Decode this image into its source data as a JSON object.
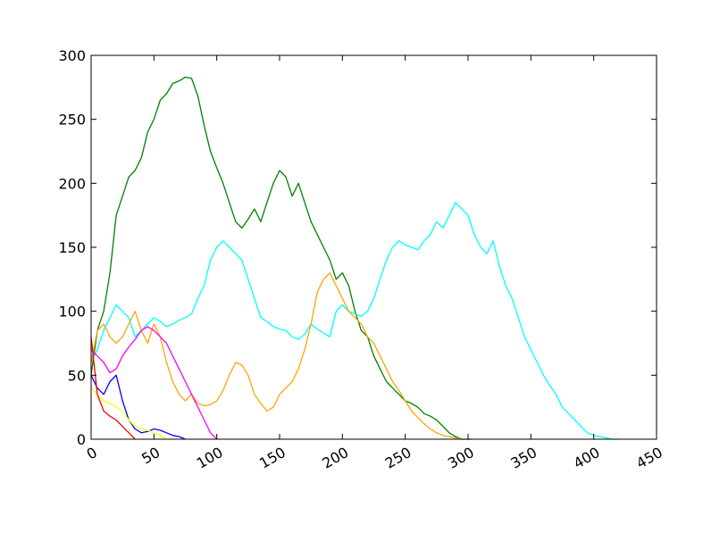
{
  "chart_data": {
    "type": "line",
    "title": "",
    "xlabel": "",
    "ylabel": "",
    "xlim": [
      0,
      450
    ],
    "ylim": [
      0,
      300
    ],
    "x_ticks": [
      0,
      50,
      100,
      150,
      200,
      250,
      300,
      350,
      400,
      450
    ],
    "y_ticks": [
      0,
      50,
      100,
      150,
      200,
      250,
      300
    ],
    "grid": false,
    "legend": "none",
    "series": [
      {
        "color": "#008000",
        "x": [
          0,
          5,
          10,
          15,
          20,
          25,
          30,
          35,
          40,
          45,
          50,
          55,
          60,
          65,
          70,
          75,
          80,
          85,
          90,
          95,
          100,
          105,
          110,
          115,
          120,
          125,
          130,
          135,
          140,
          145,
          150,
          155,
          160,
          165,
          170,
          175,
          180,
          185,
          190,
          195,
          200,
          205,
          210,
          215,
          220,
          225,
          230,
          235,
          240,
          245,
          250,
          255,
          260,
          265,
          270,
          275,
          280,
          285,
          290,
          295,
          300,
          303
        ],
        "y": [
          50,
          85,
          100,
          130,
          175,
          190,
          205,
          210,
          220,
          240,
          250,
          265,
          270,
          278,
          280,
          283,
          282,
          268,
          245,
          225,
          212,
          200,
          185,
          170,
          165,
          172,
          180,
          170,
          185,
          200,
          210,
          205,
          190,
          200,
          185,
          170,
          160,
          150,
          140,
          125,
          130,
          120,
          100,
          85,
          80,
          65,
          55,
          45,
          40,
          35,
          30,
          28,
          25,
          20,
          18,
          15,
          10,
          5,
          2,
          0,
          0,
          0
        ]
      },
      {
        "color": "#00ffff",
        "x": [
          0,
          5,
          10,
          15,
          20,
          25,
          30,
          35,
          40,
          45,
          50,
          55,
          60,
          65,
          70,
          75,
          80,
          85,
          90,
          95,
          100,
          105,
          110,
          115,
          120,
          125,
          130,
          135,
          140,
          145,
          150,
          155,
          160,
          165,
          170,
          175,
          180,
          185,
          190,
          195,
          200,
          205,
          210,
          215,
          220,
          225,
          230,
          235,
          240,
          245,
          250,
          255,
          260,
          265,
          270,
          275,
          280,
          285,
          290,
          295,
          300,
          305,
          310,
          315,
          320,
          325,
          330,
          335,
          340,
          345,
          350,
          355,
          360,
          365,
          370,
          375,
          380,
          385,
          390,
          395,
          400,
          405,
          410,
          415,
          420
        ],
        "y": [
          60,
          70,
          85,
          95,
          105,
          100,
          95,
          80,
          85,
          90,
          95,
          92,
          88,
          90,
          93,
          95,
          98,
          110,
          120,
          140,
          150,
          155,
          150,
          145,
          140,
          125,
          110,
          95,
          92,
          88,
          86,
          85,
          80,
          78,
          82,
          90,
          86,
          83,
          80,
          100,
          105,
          100,
          98,
          96,
          100,
          110,
          125,
          140,
          150,
          155,
          152,
          150,
          148,
          155,
          160,
          170,
          165,
          175,
          185,
          180,
          175,
          160,
          150,
          145,
          155,
          135,
          120,
          110,
          95,
          80,
          70,
          60,
          50,
          42,
          35,
          25,
          20,
          15,
          10,
          5,
          3,
          2,
          1,
          0,
          0
        ]
      },
      {
        "color": "#ffa500",
        "x": [
          0,
          5,
          10,
          15,
          20,
          25,
          30,
          35,
          40,
          45,
          50,
          55,
          60,
          65,
          70,
          75,
          80,
          85,
          90,
          95,
          100,
          105,
          110,
          115,
          120,
          125,
          130,
          135,
          140,
          145,
          150,
          155,
          160,
          165,
          170,
          175,
          180,
          185,
          190,
          195,
          200,
          205,
          210,
          215,
          220,
          225,
          230,
          235,
          240,
          245,
          250,
          255,
          260,
          265,
          270,
          275,
          280,
          285,
          290,
          295
        ],
        "y": [
          60,
          85,
          90,
          80,
          75,
          80,
          90,
          100,
          85,
          75,
          90,
          80,
          60,
          45,
          35,
          30,
          35,
          28,
          26,
          27,
          30,
          38,
          50,
          60,
          58,
          50,
          35,
          28,
          22,
          25,
          35,
          40,
          45,
          55,
          70,
          90,
          115,
          125,
          130,
          120,
          110,
          100,
          95,
          90,
          80,
          75,
          65,
          55,
          45,
          38,
          30,
          22,
          17,
          12,
          8,
          5,
          3,
          2,
          1,
          0
        ]
      },
      {
        "color": "#ff00ff",
        "x": [
          0,
          5,
          10,
          15,
          20,
          25,
          30,
          35,
          40,
          45,
          50,
          55,
          60,
          65,
          70,
          75,
          80,
          85,
          90,
          95,
          100
        ],
        "y": [
          70,
          65,
          60,
          52,
          55,
          65,
          72,
          78,
          85,
          88,
          85,
          80,
          75,
          65,
          55,
          45,
          35,
          25,
          15,
          5,
          0
        ]
      },
      {
        "color": "#0000ff",
        "x": [
          0,
          5,
          10,
          15,
          20,
          25,
          30,
          35,
          40,
          45,
          50,
          55,
          60,
          65,
          70,
          75
        ],
        "y": [
          50,
          40,
          35,
          45,
          50,
          30,
          15,
          8,
          5,
          6,
          8,
          7,
          5,
          3,
          2,
          0
        ]
      },
      {
        "color": "#ffff00",
        "x": [
          0,
          5,
          10,
          15,
          20,
          25,
          30,
          35,
          40,
          45,
          50,
          55,
          60
        ],
        "y": [
          40,
          35,
          30,
          28,
          25,
          22,
          15,
          10,
          8,
          7,
          5,
          3,
          0
        ]
      },
      {
        "color": "#ff0000",
        "x": [
          0,
          5,
          10,
          15,
          20,
          25,
          30,
          35
        ],
        "y": [
          80,
          35,
          22,
          18,
          15,
          10,
          5,
          0
        ]
      }
    ]
  }
}
